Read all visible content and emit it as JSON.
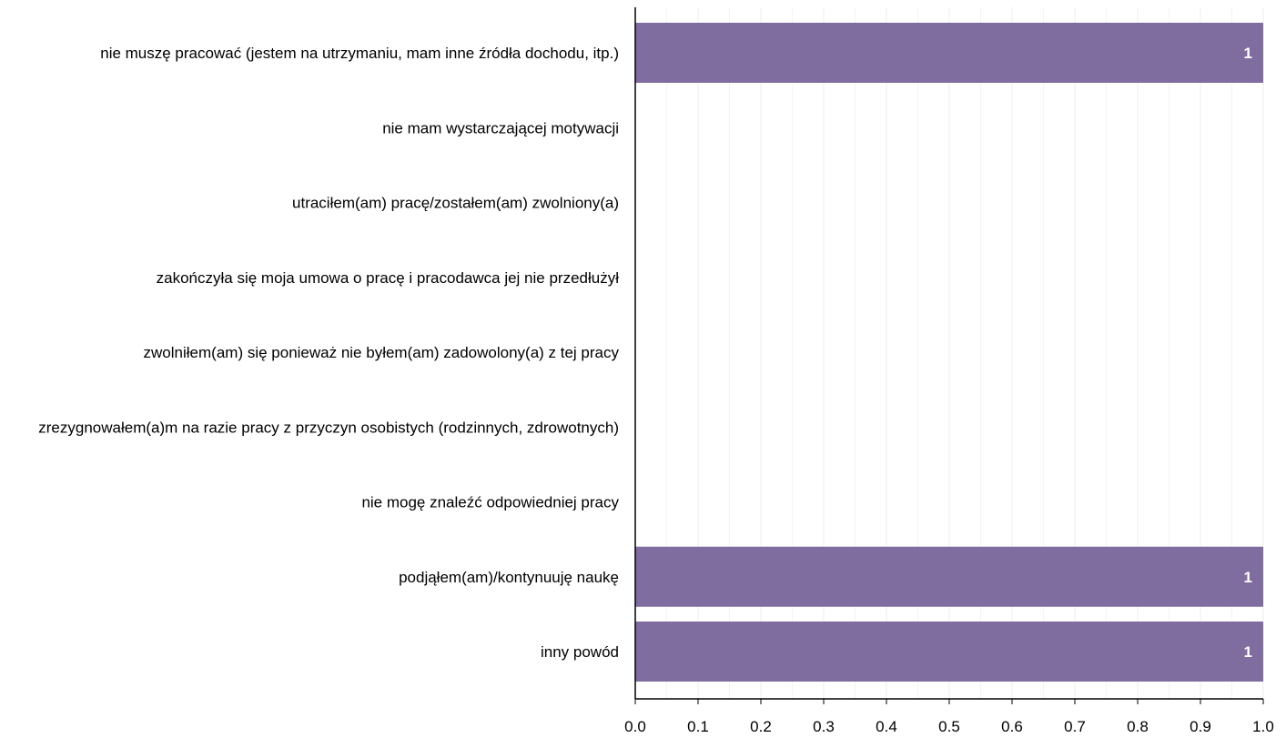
{
  "chart_data": {
    "type": "bar",
    "orientation": "horizontal",
    "categories": [
      "nie muszę pracować (jestem na utrzymaniu, mam inne źródła dochodu, itp.)",
      "nie mam wystarczającej motywacji",
      "utraciłem(am) pracę/zostałem(am) zwolniony(a)",
      "zakończyła się moja umowa o pracę i pracodawca jej nie przedłużył",
      "zwolniłem(am) się ponieważ nie byłem(am) zadowolony(a) z tej pracy",
      "zrezygnowałem(a)m na razie pracy z przyczyn osobistych (rodzinnych, zdrowotnych)",
      "nie mogę znaleźć odpowiedniej pracy",
      "podjąłem(am)/kontynuuję naukę",
      "inny powód"
    ],
    "values": [
      1,
      0,
      0,
      0,
      0,
      0,
      0,
      1,
      1
    ],
    "value_labels": [
      "1",
      "",
      "",
      "",
      "",
      "",
      "",
      "1",
      "1"
    ],
    "xlim": [
      0,
      1
    ],
    "xticks": [
      "0.0",
      "0.1",
      "0.2",
      "0.3",
      "0.4",
      "0.5",
      "0.6",
      "0.7",
      "0.8",
      "0.9",
      "1.0"
    ],
    "title": "",
    "xlabel": "",
    "ylabel": "",
    "grid": true,
    "colors": {
      "bar": "#7f6da0",
      "grid": "#ececec",
      "axis": "#000000"
    }
  }
}
